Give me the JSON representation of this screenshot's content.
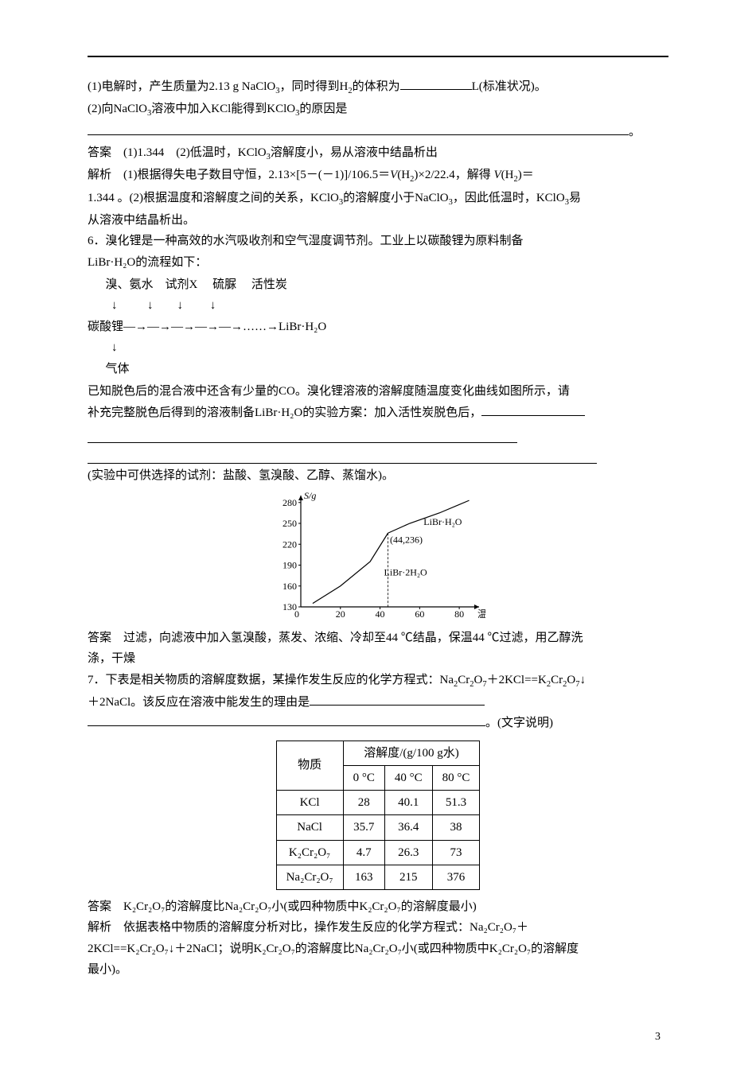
{
  "header_rule": true,
  "q5": {
    "line1_a": "(1)电解时，产生质量为2.13 g NaClO",
    "line1_b": "，同时得到H",
    "line1_c": "的体积为",
    "line1_d": "L(标准状况)。",
    "line2_a": "(2)向NaClO",
    "line2_b": "溶液中加入KCl能得到KClO",
    "line2_c": "的原因是",
    "ans_label": "答案　(1)1.344　(2)低温时，KClO",
    "ans_tail": "溶解度小，易从溶液中结晶析出",
    "expl_a": "解析　(1)根据得失电子数目守恒，2.13×[5－(－1)]/106.5＝",
    "expl_b": "(H",
    "expl_c": ")×2/22.4，解得 ",
    "expl_d": "(H",
    "expl_e": ")＝",
    "expl_line2_a": "1.344 。(2)根据温度和溶解度之间的关系，KClO",
    "expl_line2_b": "的溶解度小于NaClO",
    "expl_line2_c": "，因此低温时，KClO",
    "expl_line2_d": "易",
    "expl_line3": "从溶液中结晶析出。"
  },
  "q6": {
    "stem1": "6．溴化锂是一种高效的水汽吸收剂和空气湿度调节剂。工业上以碳酸锂为原料制备",
    "stem2": "LiBr·H₂O的流程如下：",
    "flow_top": "      溴、氨水    试剂X     硫脲     活性炭",
    "flow_arrows": "        ↓          ↓        ↓         ↓",
    "flow_main": "碳酸锂―→―→―→―→―→……→LiBr·H₂O",
    "flow_down": "        ↓",
    "flow_gas": "      气体",
    "stem3": "已知脱色后的混合液中还含有少量的CO。溴化锂溶液的溶解度随温度变化曲线如图所示，请",
    "stem4_a": "补充完整脱色后得到的溶液制备LiBr·H₂O的实验方案：加入活性炭脱色后，",
    "reagents": "(实验中可供选择的试剂：盐酸、氢溴酸、乙醇、蒸馏水)。",
    "ans1": "答案　过滤，向滤液中加入氢溴酸，蒸发、浓缩、冷却至44 ℃结晶，保温44 ℃过滤，用乙醇洗",
    "ans2": "涤，干燥"
  },
  "chart": {
    "background_color": "#ffffff",
    "axis_color": "#000000",
    "line_color": "#000000",
    "line_width": 1.2,
    "y_label": "S/g",
    "x_label": "温度/℃",
    "y_ticks": [
      130,
      160,
      190,
      220,
      250,
      280
    ],
    "x_ticks": [
      0,
      20,
      40,
      60,
      80
    ],
    "point_label": "(44,236)",
    "series": [
      {
        "name": "LiBr·2H₂O",
        "points": [
          [
            6,
            135
          ],
          [
            20,
            160
          ],
          [
            35,
            195
          ],
          [
            44,
            236
          ]
        ]
      },
      {
        "name": "LiBr·H₂O",
        "points": [
          [
            44,
            236
          ],
          [
            55,
            250
          ],
          [
            70,
            265
          ],
          [
            85,
            283
          ]
        ]
      }
    ],
    "label_pos": {
      "LiBr·2H2O": [
        42,
        175
      ],
      "LiBr·H2O": [
        62,
        248
      ],
      "point": [
        45,
        222
      ]
    },
    "font_size": 12
  },
  "q7": {
    "stem1_a": "7．下表是相关物质的溶解度数据，某操作发生反应的化学方程式：Na",
    "stem1_b": "Cr",
    "stem1_c": "O",
    "stem1_d": "＋2KCl==K",
    "stem1_e": "Cr",
    "stem1_f": "O",
    "stem1_g": "↓",
    "stem2": "＋2NaCl。该反应在溶液中能发生的理由是",
    "stem_tail": "。(文字说明)",
    "ans_a": "答案　K₂Cr₂O₇的溶解度比Na₂Cr₂O₇小(或四种物质中K₂Cr₂O₇的溶解度最小)",
    "expl1": "解析　依据表格中物质的溶解度分析对比，操作发生反应的化学方程式：Na₂Cr₂O₇＋",
    "expl2": "2KCl==K₂Cr₂O₇↓＋2NaCl；说明K₂Cr₂O₇的溶解度比Na₂Cr₂O₇小(或四种物质中K₂Cr₂O₇的溶解度",
    "expl3": "最小)。"
  },
  "table": {
    "header_substance": "物质",
    "header_sol": "溶解度/(g/100 g水)",
    "temps": [
      "0 °C",
      "40 °C",
      "80 °C"
    ],
    "rows": [
      {
        "name": "KCl",
        "vals": [
          "28",
          "40.1",
          "51.3"
        ]
      },
      {
        "name": "NaCl",
        "vals": [
          "35.7",
          "36.4",
          "38"
        ]
      },
      {
        "name": "K₂Cr₂O₇",
        "vals": [
          "4.7",
          "26.3",
          "73"
        ]
      },
      {
        "name": "Na₂Cr₂O₇",
        "vals": [
          "163",
          "215",
          "376"
        ]
      }
    ]
  },
  "page_number": "3"
}
